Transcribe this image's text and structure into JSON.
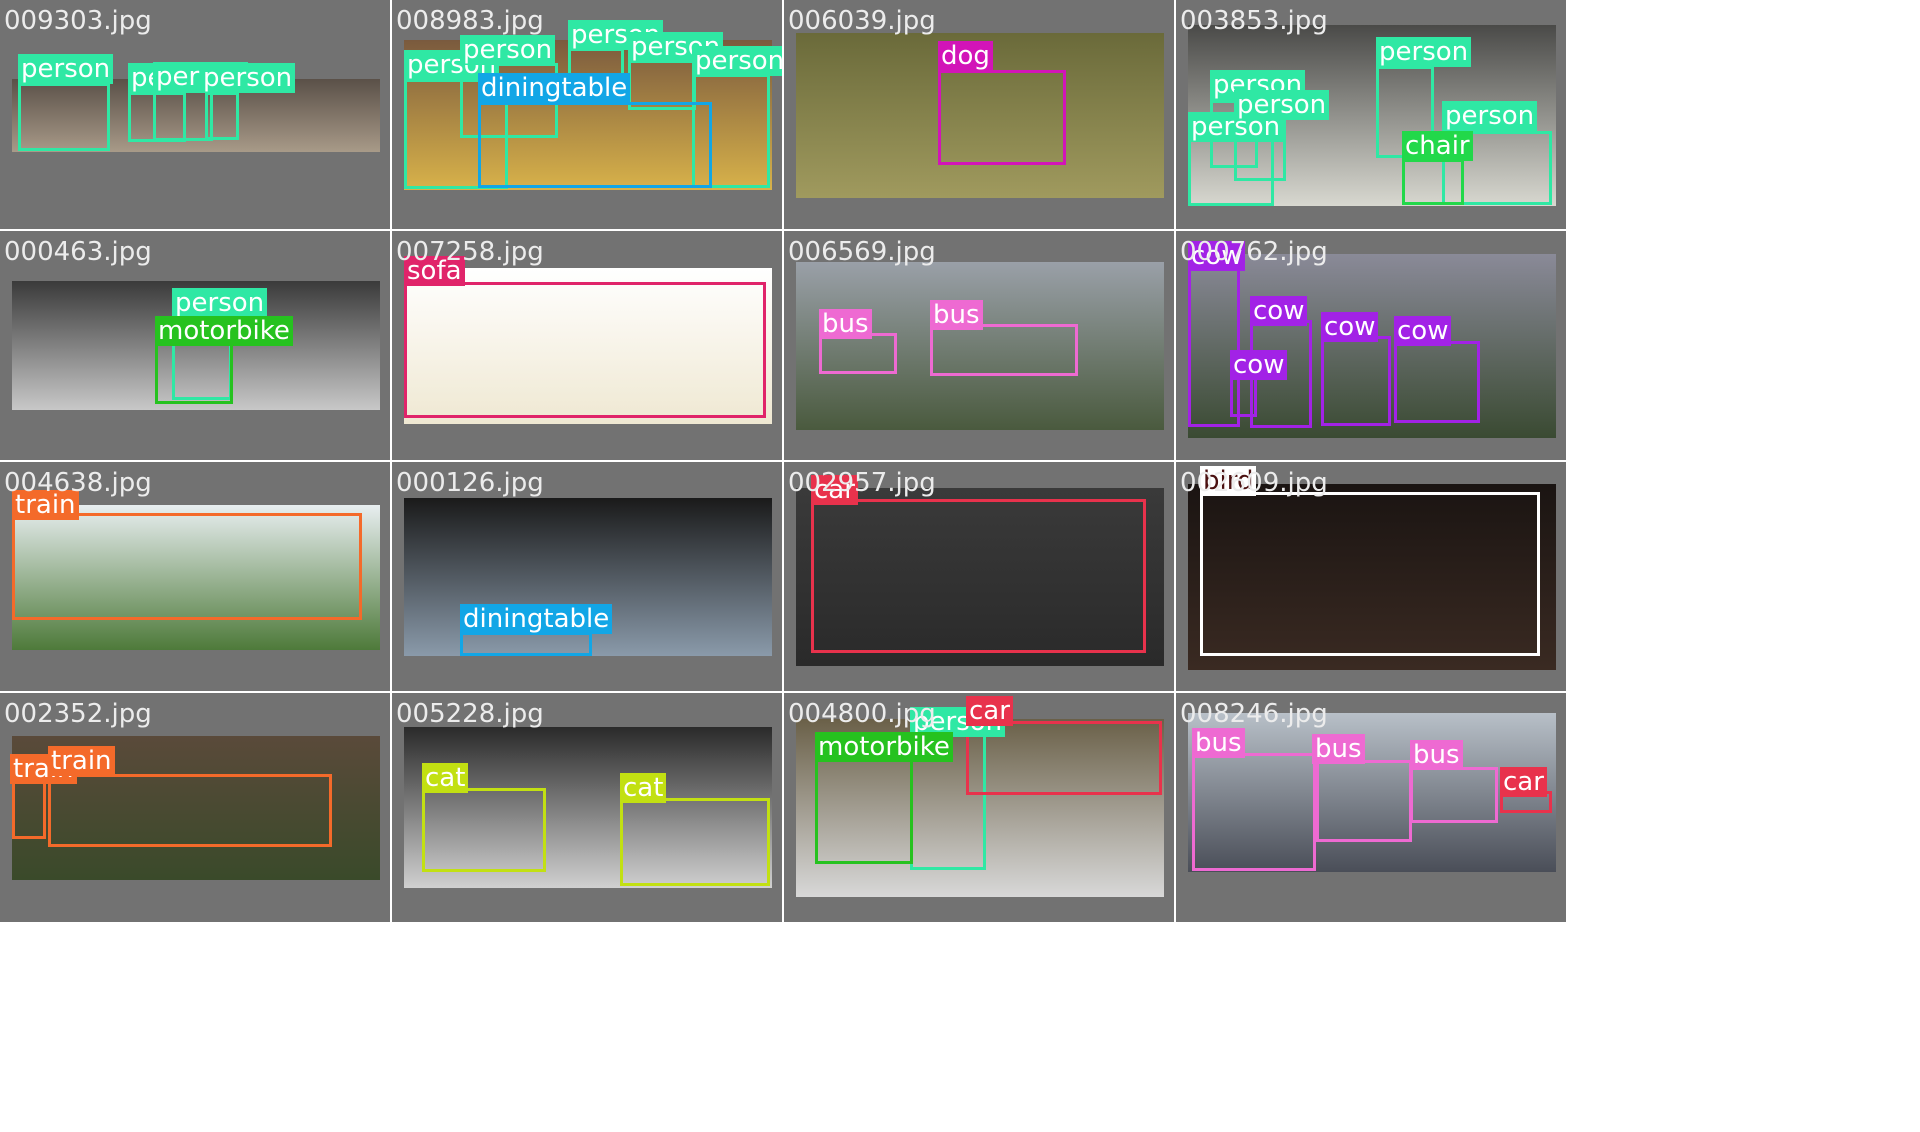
{
  "class_colors": {
    "person": "#2fe8a4",
    "diningtable": "#12a6e6",
    "dog": "#d214b8",
    "chair": "#22d84a",
    "motorbike": "#26c21f",
    "sofa": "#e0246a",
    "bus": "#ee6ad2",
    "cow": "#a222e6",
    "train": "#f46a2a",
    "car": "#e8324c",
    "bird": "#ffffff",
    "cat": "#c2e012"
  },
  "tiles": [
    {
      "file": "009303.jpg",
      "photo": [
        "#5a5048",
        "#a89a88"
      ],
      "dets": [
        {
          "cls": "person"
        },
        {
          "cls": "person"
        },
        {
          "cls": "person"
        },
        {
          "cls": "person"
        }
      ]
    },
    {
      "file": "008983.jpg",
      "photo": [
        "#7a5a3e",
        "#d8b24a"
      ],
      "dets": [
        {
          "cls": "person"
        },
        {
          "cls": "person"
        },
        {
          "cls": "person"
        },
        {
          "cls": "person"
        },
        {
          "cls": "person"
        },
        {
          "cls": "diningtable"
        }
      ]
    },
    {
      "file": "006039.jpg",
      "photo": [
        "#6a6a3a",
        "#a09a5e"
      ],
      "dets": [
        {
          "cls": "dog"
        }
      ]
    },
    {
      "file": "003853.jpg",
      "photo": [
        "#4a4a48",
        "#d8d8d0"
      ],
      "dets": [
        {
          "cls": "person"
        },
        {
          "cls": "person"
        },
        {
          "cls": "person"
        },
        {
          "cls": "person"
        },
        {
          "cls": "person"
        },
        {
          "cls": "chair"
        }
      ]
    },
    {
      "file": "000463.jpg",
      "photo": [
        "#3a3a3a",
        "#c8c8c8"
      ],
      "dets": [
        {
          "cls": "person"
        },
        {
          "cls": "motorbike"
        }
      ]
    },
    {
      "file": "007258.jpg",
      "photo": [
        "#ffffff",
        "#efe8d2"
      ],
      "dets": [
        {
          "cls": "sofa"
        }
      ]
    },
    {
      "file": "006569.jpg",
      "photo": [
        "#9aa0a8",
        "#4a5a3e"
      ],
      "dets": [
        {
          "cls": "bus"
        },
        {
          "cls": "bus"
        }
      ]
    },
    {
      "file": "000762.jpg",
      "photo": [
        "#8a8a98",
        "#3a4a32"
      ],
      "dets": [
        {
          "cls": "cow"
        },
        {
          "cls": "cow"
        },
        {
          "cls": "cow"
        },
        {
          "cls": "cow"
        },
        {
          "cls": "cow"
        }
      ]
    },
    {
      "file": "004638.jpg",
      "photo": [
        "#e8eef0",
        "#4e7a3a"
      ],
      "dets": [
        {
          "cls": "train"
        }
      ]
    },
    {
      "file": "000126.jpg",
      "photo": [
        "#1a1a1a",
        "#8a9aaa"
      ],
      "dets": [
        {
          "cls": "diningtable"
        }
      ]
    },
    {
      "file": "002957.jpg",
      "photo": [
        "#3a3a3a",
        "#2a2a2a"
      ],
      "dets": [
        {
          "cls": "car"
        }
      ]
    },
    {
      "file": "002609.jpg",
      "photo": [
        "#1a1412",
        "#3a2a22"
      ],
      "dets": [
        {
          "cls": "bird"
        }
      ]
    },
    {
      "file": "002352.jpg",
      "photo": [
        "#5a4a3a",
        "#3a4a2a"
      ],
      "dets": [
        {
          "cls": "train"
        },
        {
          "cls": "train"
        }
      ]
    },
    {
      "file": "005228.jpg",
      "photo": [
        "#2a2a2a",
        "#d0d0d0"
      ],
      "dets": [
        {
          "cls": "cat"
        },
        {
          "cls": "cat"
        }
      ]
    },
    {
      "file": "004800.jpg",
      "photo": [
        "#6a6048",
        "#d8d8d8"
      ],
      "dets": [
        {
          "cls": "person"
        },
        {
          "cls": "motorbike"
        },
        {
          "cls": "car"
        }
      ]
    },
    {
      "file": "008246.jpg",
      "photo": [
        "#b8c0c8",
        "#4a4e58"
      ],
      "dets": [
        {
          "cls": "bus"
        },
        {
          "cls": "bus"
        },
        {
          "cls": "bus"
        },
        {
          "cls": "car"
        }
      ]
    }
  ]
}
